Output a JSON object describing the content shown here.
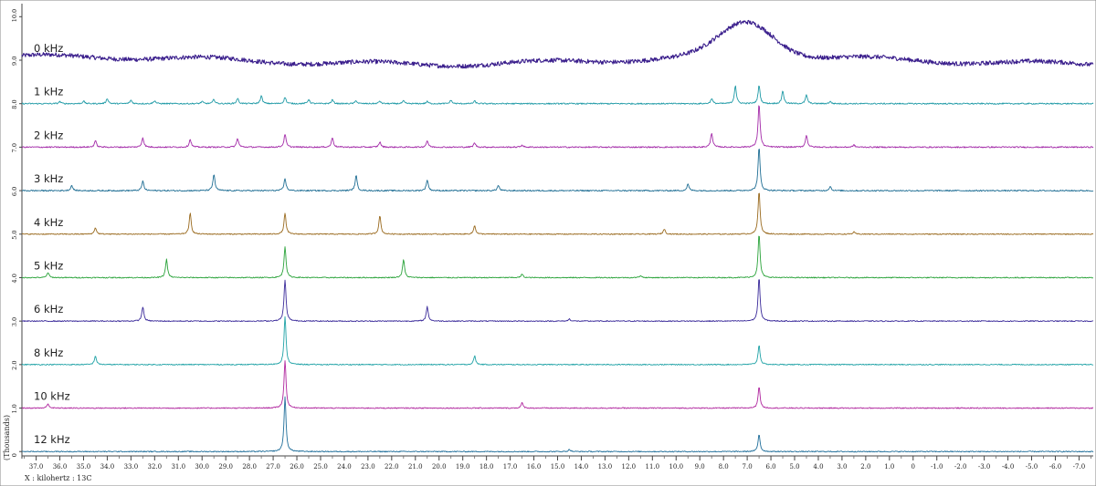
{
  "chart_data": {
    "type": "line",
    "xlabel": "X : kilohertz : 13C",
    "ylabel": "(Thousands)",
    "xlim": [
      37.6,
      -7.6
    ],
    "ylim": [
      -0.1,
      10.3
    ],
    "x_ticks": [
      37.0,
      36.0,
      35.0,
      34.0,
      33.0,
      32.0,
      31.0,
      30.0,
      29.0,
      28.0,
      27.0,
      26.0,
      25.0,
      24.0,
      23.0,
      22.0,
      21.0,
      20.0,
      19.0,
      18.0,
      17.0,
      16.0,
      15.0,
      14.0,
      13.0,
      12.0,
      11.0,
      10.0,
      9.0,
      8.0,
      7.0,
      6.0,
      5.0,
      4.0,
      3.0,
      2.0,
      1.0,
      0,
      -1.0,
      -2.0,
      -3.0,
      -4.0,
      -5.0,
      -6.0,
      -7.0
    ],
    "y_ticks": [
      0,
      1.0,
      2.0,
      3.0,
      4.0,
      5.0,
      6.0,
      7.0,
      8.0,
      9.0,
      10.0
    ],
    "grid": false,
    "series": [
      {
        "name": "0 kHz",
        "offset": 9.0,
        "color": "#3a1e8c",
        "noise": 0.05,
        "baseline_wave": true,
        "broad": {
          "center": 7.0,
          "height": 0.8,
          "width": 1.6
        },
        "peaks": []
      },
      {
        "name": "1 kHz",
        "offset": 8.0,
        "color": "#1f9aa6",
        "noise": 0.015,
        "peaks": [
          [
            36.0,
            0.05
          ],
          [
            35.0,
            0.06
          ],
          [
            34.0,
            0.12
          ],
          [
            33.0,
            0.08
          ],
          [
            32.0,
            0.07
          ],
          [
            30.0,
            0.05
          ],
          [
            29.5,
            0.1
          ],
          [
            28.5,
            0.12
          ],
          [
            27.5,
            0.18
          ],
          [
            26.5,
            0.15
          ],
          [
            25.5,
            0.1
          ],
          [
            24.5,
            0.09
          ],
          [
            23.5,
            0.07
          ],
          [
            22.5,
            0.06
          ],
          [
            21.5,
            0.06
          ],
          [
            20.5,
            0.05
          ],
          [
            19.5,
            0.08
          ],
          [
            18.5,
            0.06
          ],
          [
            8.5,
            0.12
          ],
          [
            7.5,
            0.42
          ],
          [
            6.5,
            0.42
          ],
          [
            5.5,
            0.3
          ],
          [
            4.5,
            0.2
          ],
          [
            3.5,
            0.05
          ]
        ]
      },
      {
        "name": "2 kHz",
        "offset": 7.0,
        "color": "#a32aa8",
        "noise": 0.015,
        "peaks": [
          [
            34.5,
            0.15
          ],
          [
            32.5,
            0.22
          ],
          [
            30.5,
            0.18
          ],
          [
            28.5,
            0.2
          ],
          [
            26.5,
            0.3
          ],
          [
            24.5,
            0.22
          ],
          [
            22.5,
            0.12
          ],
          [
            20.5,
            0.15
          ],
          [
            18.5,
            0.1
          ],
          [
            16.5,
            0.05
          ],
          [
            8.5,
            0.33
          ],
          [
            6.5,
            1.0
          ],
          [
            4.5,
            0.28
          ],
          [
            2.5,
            0.05
          ]
        ]
      },
      {
        "name": "3 kHz",
        "offset": 6.0,
        "color": "#1f6e94",
        "noise": 0.015,
        "peaks": [
          [
            35.5,
            0.12
          ],
          [
            32.5,
            0.22
          ],
          [
            29.5,
            0.38
          ],
          [
            26.5,
            0.28
          ],
          [
            23.5,
            0.35
          ],
          [
            20.5,
            0.25
          ],
          [
            17.5,
            0.12
          ],
          [
            9.5,
            0.15
          ],
          [
            6.5,
            1.0
          ],
          [
            3.5,
            0.1
          ]
        ]
      },
      {
        "name": "4 kHz",
        "offset": 5.0,
        "color": "#9a6a1e",
        "noise": 0.012,
        "peaks": [
          [
            34.5,
            0.15
          ],
          [
            30.5,
            0.48
          ],
          [
            26.5,
            0.48
          ],
          [
            22.5,
            0.43
          ],
          [
            18.5,
            0.2
          ],
          [
            10.5,
            0.12
          ],
          [
            6.5,
            1.0
          ],
          [
            2.5,
            0.05
          ]
        ]
      },
      {
        "name": "5 kHz",
        "offset": 4.0,
        "color": "#2aa33a",
        "noise": 0.012,
        "peaks": [
          [
            36.5,
            0.12
          ],
          [
            31.5,
            0.42
          ],
          [
            26.5,
            0.72
          ],
          [
            21.5,
            0.42
          ],
          [
            16.5,
            0.08
          ],
          [
            11.5,
            0.05
          ],
          [
            6.5,
            1.0
          ]
        ]
      },
      {
        "name": "6 kHz",
        "offset": 3.0,
        "color": "#3a2a9a",
        "noise": 0.012,
        "peaks": [
          [
            32.5,
            0.33
          ],
          [
            26.5,
            0.95
          ],
          [
            20.5,
            0.33
          ],
          [
            14.5,
            0.05
          ],
          [
            6.5,
            1.0
          ]
        ]
      },
      {
        "name": "8 kHz",
        "offset": 2.0,
        "color": "#1fa2a6",
        "noise": 0.012,
        "peaks": [
          [
            34.5,
            0.2
          ],
          [
            26.5,
            1.1
          ],
          [
            18.5,
            0.2
          ],
          [
            6.5,
            0.45
          ]
        ]
      },
      {
        "name": "10 kHz",
        "offset": 1.0,
        "color": "#b0269e",
        "noise": 0.012,
        "peaks": [
          [
            36.5,
            0.1
          ],
          [
            26.5,
            1.1
          ],
          [
            16.5,
            0.12
          ],
          [
            6.5,
            0.5
          ]
        ]
      },
      {
        "name": "12 kHz",
        "offset": 0.0,
        "color": "#1f6e9a",
        "noise": 0.012,
        "peaks": [
          [
            26.5,
            1.25
          ],
          [
            14.5,
            0.05
          ],
          [
            6.5,
            0.4
          ]
        ]
      }
    ]
  },
  "colors": {
    "frame": "#666666",
    "background": "#ffffff"
  }
}
